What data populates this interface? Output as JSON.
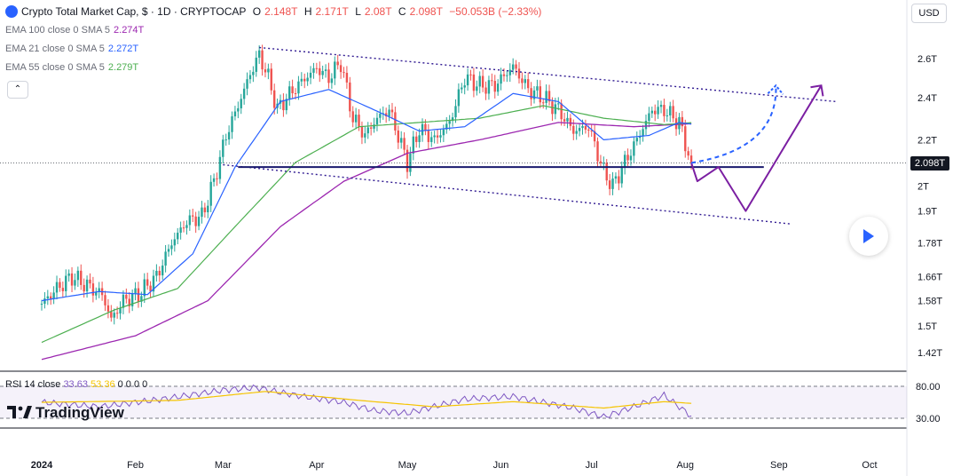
{
  "header": {
    "symbol": "Crypto Total Market Cap, $ · 1D · CRYPTOCAP",
    "o_label": "O",
    "o": "2.148T",
    "h_label": "H",
    "h": "2.171T",
    "l_label": "L",
    "l": "2.08T",
    "c_label": "C",
    "c": "2.098T",
    "change": "−50.053B (−2.33%)"
  },
  "indicators": [
    {
      "label": "EMA 100 close 0 SMA 5",
      "value": "2.274T",
      "color": "#9c27b0"
    },
    {
      "label": "EMA 21 close 0 SMA 5",
      "value": "2.272T",
      "color": "#2962ff"
    },
    {
      "label": "EMA 55 close 0 SMA 5",
      "value": "2.279T",
      "color": "#4caf50"
    }
  ],
  "currency": "USD",
  "current_price": "2.098T",
  "rsi": {
    "label": "RSI 14 close",
    "value": "33.63",
    "sma": "53.36",
    "zeros": "0 0 0 0",
    "ticks": [
      "80.00",
      "30.00"
    ]
  },
  "brand": "TradingView",
  "chart_data": {
    "type": "candlestick",
    "title": "Crypto Total Market Cap, $ · 1D · CRYPTOCAP",
    "scale": "log",
    "y_ticks": [
      "2.6T",
      "2.4T",
      "2.2T",
      "2T",
      "1.9T",
      "1.78T",
      "1.66T",
      "1.58T",
      "1.5T",
      "1.42T"
    ],
    "y_tick_values": [
      2.6,
      2.4,
      2.2,
      2.0,
      1.9,
      1.78,
      1.66,
      1.58,
      1.5,
      1.42
    ],
    "x_ticks": [
      "2024",
      "Feb",
      "Mar",
      "Apr",
      "May",
      "Jun",
      "Jul",
      "Aug",
      "Sep",
      "Oct"
    ],
    "price_series": [
      [
        "2024-01-01",
        1.57
      ],
      [
        "2024-01-06",
        1.62
      ],
      [
        "2024-01-11",
        1.66
      ],
      [
        "2024-01-16",
        1.63
      ],
      [
        "2024-01-21",
        1.6
      ],
      [
        "2024-01-24",
        1.52
      ],
      [
        "2024-01-28",
        1.58
      ],
      [
        "2024-02-02",
        1.6
      ],
      [
        "2024-02-08",
        1.66
      ],
      [
        "2024-02-13",
        1.78
      ],
      [
        "2024-02-18",
        1.86
      ],
      [
        "2024-02-23",
        1.88
      ],
      [
        "2024-02-27",
        2.02
      ],
      [
        "2024-03-02",
        2.22
      ],
      [
        "2024-03-06",
        2.36
      ],
      [
        "2024-03-10",
        2.52
      ],
      [
        "2024-03-13",
        2.62
      ],
      [
        "2024-03-16",
        2.5
      ],
      [
        "2024-03-19",
        2.34
      ],
      [
        "2024-03-22",
        2.4
      ],
      [
        "2024-03-27",
        2.48
      ],
      [
        "2024-04-01",
        2.55
      ],
      [
        "2024-04-05",
        2.5
      ],
      [
        "2024-04-09",
        2.58
      ],
      [
        "2024-04-13",
        2.3
      ],
      [
        "2024-04-17",
        2.22
      ],
      [
        "2024-04-21",
        2.3
      ],
      [
        "2024-04-25",
        2.34
      ],
      [
        "2024-05-01",
        2.1
      ],
      [
        "2024-05-05",
        2.25
      ],
      [
        "2024-05-10",
        2.2
      ],
      [
        "2024-05-15",
        2.28
      ],
      [
        "2024-05-20",
        2.5
      ],
      [
        "2024-05-25",
        2.46
      ],
      [
        "2024-05-30",
        2.46
      ],
      [
        "2024-06-05",
        2.56
      ],
      [
        "2024-06-10",
        2.44
      ],
      [
        "2024-06-15",
        2.4
      ],
      [
        "2024-06-20",
        2.34
      ],
      [
        "2024-06-25",
        2.24
      ],
      [
        "2024-06-30",
        2.26
      ],
      [
        "2024-07-05",
        2.06
      ],
      [
        "2024-07-08",
        2.0
      ],
      [
        "2024-07-12",
        2.1
      ],
      [
        "2024-07-16",
        2.2
      ],
      [
        "2024-07-21",
        2.34
      ],
      [
        "2024-07-25",
        2.34
      ],
      [
        "2024-07-30",
        2.28
      ],
      [
        "2024-08-02",
        2.14
      ],
      [
        "2024-08-03",
        2.098
      ]
    ],
    "ema21": [
      [
        "2024-01-01",
        1.58
      ],
      [
        "2024-01-20",
        1.61
      ],
      [
        "2024-02-05",
        1.6
      ],
      [
        "2024-02-20",
        1.74
      ],
      [
        "2024-03-05",
        2.08
      ],
      [
        "2024-03-20",
        2.38
      ],
      [
        "2024-04-05",
        2.44
      ],
      [
        "2024-04-20",
        2.34
      ],
      [
        "2024-05-05",
        2.24
      ],
      [
        "2024-05-20",
        2.26
      ],
      [
        "2024-06-05",
        2.42
      ],
      [
        "2024-06-20",
        2.38
      ],
      [
        "2024-07-05",
        2.2
      ],
      [
        "2024-07-20",
        2.22
      ],
      [
        "2024-07-30",
        2.28
      ],
      [
        "2024-08-03",
        2.272
      ]
    ],
    "ema55": [
      [
        "2024-01-01",
        1.45
      ],
      [
        "2024-01-25",
        1.55
      ],
      [
        "2024-02-15",
        1.62
      ],
      [
        "2024-03-05",
        1.84
      ],
      [
        "2024-03-25",
        2.1
      ],
      [
        "2024-04-15",
        2.26
      ],
      [
        "2024-05-05",
        2.28
      ],
      [
        "2024-05-25",
        2.3
      ],
      [
        "2024-06-15",
        2.36
      ],
      [
        "2024-07-05",
        2.3
      ],
      [
        "2024-07-25",
        2.27
      ],
      [
        "2024-08-03",
        2.279
      ]
    ],
    "ema100": [
      [
        "2024-01-01",
        1.4
      ],
      [
        "2024-02-01",
        1.47
      ],
      [
        "2024-02-25",
        1.58
      ],
      [
        "2024-03-20",
        1.84
      ],
      [
        "2024-04-10",
        2.02
      ],
      [
        "2024-05-01",
        2.14
      ],
      [
        "2024-05-25",
        2.2
      ],
      [
        "2024-06-20",
        2.28
      ],
      [
        "2024-07-15",
        2.26
      ],
      [
        "2024-08-03",
        2.274
      ]
    ],
    "rsi_series": [
      [
        "2024-01-01",
        55
      ],
      [
        "2024-01-20",
        48
      ],
      [
        "2024-02-10",
        60
      ],
      [
        "2024-03-01",
        74
      ],
      [
        "2024-03-12",
        78
      ],
      [
        "2024-03-25",
        66
      ],
      [
        "2024-04-10",
        55
      ],
      [
        "2024-04-20",
        42
      ],
      [
        "2024-05-01",
        38
      ],
      [
        "2024-05-20",
        60
      ],
      [
        "2024-06-05",
        64
      ],
      [
        "2024-06-25",
        46
      ],
      [
        "2024-07-05",
        32
      ],
      [
        "2024-07-15",
        48
      ],
      [
        "2024-07-25",
        66
      ],
      [
        "2024-08-03",
        33.63
      ]
    ],
    "rsi_sma": [
      [
        "2024-01-01",
        55
      ],
      [
        "2024-02-15",
        58
      ],
      [
        "2024-03-15",
        72
      ],
      [
        "2024-04-15",
        58
      ],
      [
        "2024-05-10",
        48
      ],
      [
        "2024-06-05",
        56
      ],
      [
        "2024-07-05",
        46
      ],
      [
        "2024-07-25",
        56
      ],
      [
        "2024-08-03",
        53.36
      ]
    ],
    "support_level": 2.08,
    "channel_upper": [
      [
        "2024-03-13",
        2.66
      ],
      [
        "2024-09-20",
        2.38
      ]
    ],
    "channel_lower": [
      [
        "2024-03-01",
        2.09
      ],
      [
        "2024-09-05",
        1.85
      ]
    ],
    "projection_bearish": [
      [
        "2024-08-03",
        2.098
      ],
      [
        "2024-08-05",
        2.02
      ],
      [
        "2024-08-12",
        2.08
      ],
      [
        "2024-08-21",
        1.9
      ],
      [
        "2024-09-15",
        2.46
      ]
    ],
    "projection_bullish": [
      [
        "2024-08-03",
        2.098
      ],
      [
        "2024-08-20",
        2.2
      ],
      [
        "2024-08-31",
        2.46
      ]
    ],
    "colors": {
      "up": "#26a69a",
      "down": "#ef5350",
      "ema21": "#2962ff",
      "ema55": "#4caf50",
      "ema100": "#9c27b0",
      "channel": "#311b92",
      "projection": "#7b1fa2",
      "bullish": "#2962ff",
      "support": "#1a1a6e",
      "rsi": "#7e57c2",
      "rsi_sma": "#f5c400"
    }
  }
}
